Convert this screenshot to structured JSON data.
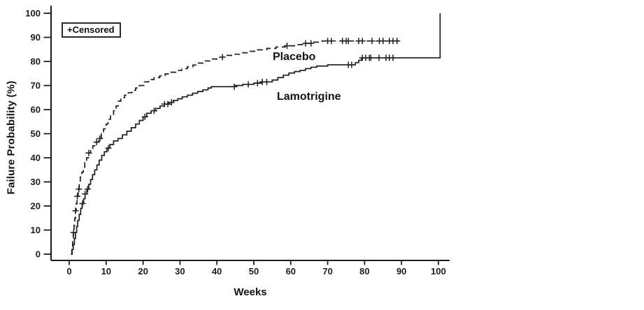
{
  "figure": {
    "background": "#ffffff",
    "ink": "#1d1d1b"
  },
  "legend": {
    "label": "+Censored"
  },
  "x_axis": {
    "title": "Weeks",
    "ticks": [
      0,
      10,
      20,
      30,
      40,
      50,
      60,
      70,
      80,
      90,
      100
    ]
  },
  "y_axis": {
    "title": "Failure Probability (%)",
    "ticks": [
      0,
      10,
      20,
      30,
      40,
      50,
      60,
      70,
      80,
      90,
      100
    ]
  },
  "chart_data": {
    "type": "line",
    "subtype": "kaplan-meier-step",
    "title": "",
    "xlabel": "Weeks",
    "ylabel": "Failure Probability (%)",
    "xlim": [
      0,
      100
    ],
    "ylim": [
      0,
      100
    ],
    "grid": false,
    "legend_note": "+Censored",
    "series": [
      {
        "name": "Placebo",
        "line": "dashed",
        "steps": [
          [
            0.5,
            0
          ],
          [
            0.7,
            3
          ],
          [
            0.9,
            6
          ],
          [
            1.1,
            9
          ],
          [
            1.3,
            12
          ],
          [
            1.5,
            15
          ],
          [
            1.7,
            18
          ],
          [
            1.9,
            21
          ],
          [
            2.1,
            24
          ],
          [
            2.4,
            27
          ],
          [
            2.7,
            30
          ],
          [
            3.0,
            32
          ],
          [
            3.4,
            34
          ],
          [
            3.8,
            36
          ],
          [
            4.2,
            38
          ],
          [
            4.7,
            40
          ],
          [
            5.2,
            42
          ],
          [
            5.8,
            43.5
          ],
          [
            6.4,
            45
          ],
          [
            7.2,
            46.5
          ],
          [
            8.0,
            48
          ],
          [
            8.7,
            50
          ],
          [
            9.3,
            52
          ],
          [
            10.0,
            54
          ],
          [
            10.5,
            56
          ],
          [
            11.2,
            57.5
          ],
          [
            12.0,
            59.5
          ],
          [
            12.7,
            61.5
          ],
          [
            13.3,
            63.5
          ],
          [
            14.0,
            65
          ],
          [
            15.0,
            66
          ],
          [
            16.0,
            67
          ],
          [
            17.0,
            68
          ],
          [
            18.0,
            69
          ],
          [
            19.0,
            70
          ],
          [
            20.2,
            71.5
          ],
          [
            21.5,
            72.5
          ],
          [
            23.0,
            73.3
          ],
          [
            24.5,
            74
          ],
          [
            26.0,
            74.8
          ],
          [
            27.5,
            75.5
          ],
          [
            29.0,
            76.3
          ],
          [
            30.5,
            77
          ],
          [
            32.0,
            77.8
          ],
          [
            33.5,
            78.5
          ],
          [
            35.0,
            79.3
          ],
          [
            36.5,
            80.2
          ],
          [
            38.5,
            81
          ],
          [
            40.5,
            81.8
          ],
          [
            42.5,
            82.5
          ],
          [
            44.5,
            83
          ],
          [
            46.5,
            83.6
          ],
          [
            48.5,
            84.2
          ],
          [
            51.0,
            84.8
          ],
          [
            53.5,
            85.4
          ],
          [
            56.0,
            86
          ],
          [
            58.5,
            86.5
          ],
          [
            61.0,
            87
          ],
          [
            63.5,
            87.5
          ],
          [
            66.0,
            88
          ],
          [
            68.5,
            88.5
          ],
          [
            90.0,
            88.5
          ]
        ],
        "censored_weeks": [
          1.2,
          1.7,
          2.2,
          2.6,
          5.3,
          7.4,
          8.3,
          41.5,
          59,
          64,
          65.5,
          70,
          71,
          74,
          75,
          75.6,
          78.4,
          79.4,
          82,
          84,
          85,
          86.7,
          87.7,
          88.8
        ]
      },
      {
        "name": "Lamotrigine",
        "line": "solid",
        "steps": [
          [
            0.5,
            0
          ],
          [
            0.8,
            2
          ],
          [
            1.1,
            4
          ],
          [
            1.4,
            6.5
          ],
          [
            1.7,
            9
          ],
          [
            2.0,
            11.5
          ],
          [
            2.3,
            14
          ],
          [
            2.7,
            16.5
          ],
          [
            3.1,
            19
          ],
          [
            3.5,
            21
          ],
          [
            3.9,
            23
          ],
          [
            4.3,
            25
          ],
          [
            4.8,
            27
          ],
          [
            5.3,
            29
          ],
          [
            5.8,
            31
          ],
          [
            6.3,
            33
          ],
          [
            6.9,
            35
          ],
          [
            7.5,
            37
          ],
          [
            8.1,
            39
          ],
          [
            8.8,
            41
          ],
          [
            9.5,
            42.5
          ],
          [
            10.2,
            44
          ],
          [
            11.0,
            45.5
          ],
          [
            12.0,
            47
          ],
          [
            13.2,
            48
          ],
          [
            14.4,
            49.5
          ],
          [
            15.6,
            51
          ],
          [
            16.8,
            52.5
          ],
          [
            18.0,
            54
          ],
          [
            19.0,
            55.5
          ],
          [
            20.0,
            57
          ],
          [
            21.0,
            58.5
          ],
          [
            22.2,
            59.5
          ],
          [
            23.4,
            60.5
          ],
          [
            24.6,
            61.5
          ],
          [
            25.8,
            62.3
          ],
          [
            27.0,
            63
          ],
          [
            28.2,
            63.8
          ],
          [
            29.4,
            64.5
          ],
          [
            30.6,
            65.3
          ],
          [
            32.0,
            66
          ],
          [
            33.4,
            66.8
          ],
          [
            34.8,
            67.5
          ],
          [
            36.2,
            68.2
          ],
          [
            37.6,
            69
          ],
          [
            38.5,
            69.5
          ],
          [
            45.0,
            70
          ],
          [
            47.0,
            70.5
          ],
          [
            50.0,
            71
          ],
          [
            52.0,
            71.5
          ],
          [
            55.0,
            72.3
          ],
          [
            56.5,
            73.3
          ],
          [
            58.0,
            74.3
          ],
          [
            59.5,
            75.2
          ],
          [
            61.0,
            75.8
          ],
          [
            62.5,
            76.3
          ],
          [
            64.0,
            77
          ],
          [
            65.5,
            77.6
          ],
          [
            67.0,
            78.1
          ],
          [
            70.0,
            78.6
          ],
          [
            77.5,
            79.5
          ],
          [
            78.4,
            80.5
          ],
          [
            79.2,
            81.5
          ],
          [
            100.4,
            81.5
          ],
          [
            100.45,
            100
          ]
        ],
        "censored_weeks": [
          3.6,
          4.3,
          5.0,
          10.6,
          20.5,
          23,
          25.8,
          26.7,
          27.7,
          44.7,
          48.5,
          51,
          52.3,
          53.5,
          75.6,
          76.5,
          79.4,
          80.3,
          81.3,
          81.7,
          83.9,
          85.8,
          86.7,
          87.7
        ]
      }
    ]
  }
}
